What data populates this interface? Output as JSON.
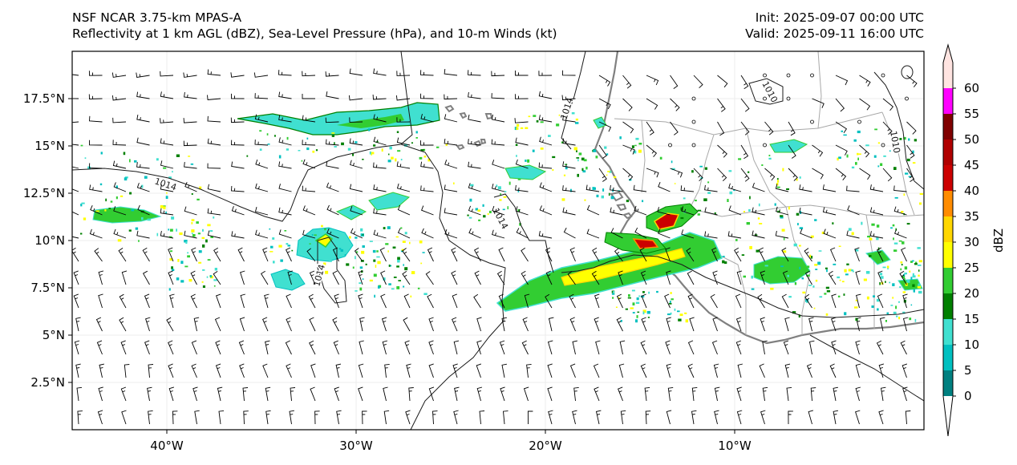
{
  "title": {
    "model": "NSF NCAR 3.75-km MPAS-A",
    "fields": "Reflectivity at 1 km AGL (dBZ), Sea-Level Pressure (hPa), and 10-m Winds (kt)",
    "init": "Init: 2025-09-07 00:00 UTC",
    "valid": "Valid: 2025-09-11 16:00 UTC"
  },
  "map": {
    "lon_range": [
      -45,
      0
    ],
    "lat_range": [
      0,
      20
    ],
    "lon_ticks": [
      {
        "value": -40,
        "label": "40°W"
      },
      {
        "value": -30,
        "label": "30°W"
      },
      {
        "value": -20,
        "label": "20°W"
      },
      {
        "value": -10,
        "label": "10°W"
      }
    ],
    "lat_ticks": [
      {
        "value": 2.5,
        "label": "2.5°N"
      },
      {
        "value": 5,
        "label": "5°N"
      },
      {
        "value": 7.5,
        "label": "7.5°N"
      },
      {
        "value": 10,
        "label": "10°N"
      },
      {
        "value": 12.5,
        "label": "12.5°N"
      },
      {
        "value": 15,
        "label": "15°N"
      },
      {
        "value": 17.5,
        "label": "17.5°N"
      }
    ],
    "gridlines": true,
    "isobar_labels": [
      "1014",
      "1014",
      "1014",
      "1014",
      "1010",
      "1010"
    ]
  },
  "colorbar": {
    "label": "dBZ",
    "extend": "both",
    "ticks": [
      "0",
      "5",
      "10",
      "15",
      "20",
      "25",
      "30",
      "35",
      "40",
      "45",
      "50",
      "55",
      "60"
    ],
    "colors": [
      "#008080",
      "#00c0c0",
      "#40e0d0",
      "#008000",
      "#32cd32",
      "#ffff00",
      "#ffd700",
      "#ff8c00",
      "#cc0000",
      "#b00000",
      "#800000",
      "#ff00ff",
      "#ffe4e1"
    ]
  }
}
